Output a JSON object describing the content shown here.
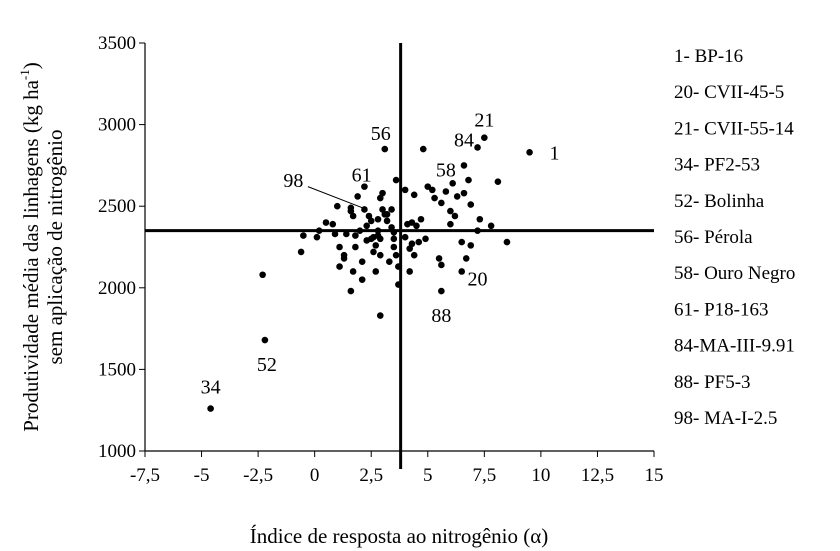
{
  "chart_data": {
    "type": "scatter",
    "title": "",
    "xlabel": "Índice de resposta ao nitrogênio (α)",
    "ylabel_line1": "Produtividade média das linhagens (kg ha",
    "ylabel_sup": "-1",
    "ylabel_close": ")",
    "ylabel_line2": "sem aplicação de nitrogênio",
    "xlim": [
      -7.5,
      15
    ],
    "ylim": [
      1000,
      3500
    ],
    "xticks": [
      -7.5,
      -5,
      -2.5,
      0,
      2.5,
      5,
      7.5,
      10,
      12.5,
      15
    ],
    "xtick_labels": [
      "-7,5",
      "-5",
      "-2,5",
      "0",
      "2,5",
      "5",
      "7,5",
      "10",
      "12,5",
      "15"
    ],
    "yticks": [
      1000,
      1500,
      2000,
      2500,
      3000,
      3500
    ],
    "ytick_labels": [
      "1000",
      "1500",
      "2000",
      "2500",
      "3000",
      "3500"
    ],
    "grid": false,
    "reference_lines": {
      "x": 3.8,
      "y": 2350
    },
    "points": [
      [
        9.5,
        2830
      ],
      [
        7.5,
        2920
      ],
      [
        7.2,
        2860
      ],
      [
        6.6,
        2750
      ],
      [
        6.8,
        2660
      ],
      [
        8.1,
        2650
      ],
      [
        6.3,
        2560
      ],
      [
        6.6,
        2580
      ],
      [
        6.9,
        2510
      ],
      [
        7.3,
        2420
      ],
      [
        7.8,
        2380
      ],
      [
        7.2,
        2350
      ],
      [
        8.5,
        2280
      ],
      [
        6.5,
        2280
      ],
      [
        6.9,
        2260
      ],
      [
        6.7,
        2180
      ],
      [
        6.5,
        2100
      ],
      [
        6.2,
        2440
      ],
      [
        6.0,
        2390
      ],
      [
        6.0,
        2470
      ],
      [
        5.8,
        2590
      ],
      [
        6.1,
        2640
      ],
      [
        5.6,
        2520
      ],
      [
        5.2,
        2600
      ],
      [
        5.3,
        2550
      ],
      [
        5.0,
        2620
      ],
      [
        4.8,
        2850
      ],
      [
        4.7,
        2420
      ],
      [
        4.9,
        2300
      ],
      [
        4.6,
        2280
      ],
      [
        4.4,
        2200
      ],
      [
        4.5,
        2380
      ],
      [
        4.3,
        2270
      ],
      [
        4.2,
        2240
      ],
      [
        4.3,
        2400
      ],
      [
        4.4,
        2570
      ],
      [
        4.0,
        2600
      ],
      [
        4.1,
        2390
      ],
      [
        4.0,
        2310
      ],
      [
        4.2,
        2100
      ],
      [
        5.5,
        2180
      ],
      [
        5.6,
        2140
      ],
      [
        5.6,
        1980
      ],
      [
        3.6,
        2660
      ],
      [
        3.4,
        2480
      ],
      [
        3.4,
        2370
      ],
      [
        3.5,
        2300
      ],
      [
        3.5,
        2250
      ],
      [
        3.6,
        2200
      ],
      [
        3.7,
        2130
      ],
      [
        3.7,
        2020
      ],
      [
        3.5,
        2340
      ],
      [
        3.3,
        2160
      ],
      [
        3.2,
        2410
      ],
      [
        3.0,
        2480
      ],
      [
        3.0,
        2580
      ],
      [
        3.1,
        2450
      ],
      [
        2.9,
        2550
      ],
      [
        2.8,
        2420
      ],
      [
        2.8,
        2350
      ],
      [
        2.9,
        2300
      ],
      [
        2.8,
        2320
      ],
      [
        2.7,
        2260
      ],
      [
        2.9,
        2200
      ],
      [
        2.6,
        2310
      ],
      [
        2.5,
        2300
      ],
      [
        2.6,
        2220
      ],
      [
        2.7,
        2100
      ],
      [
        2.5,
        2410
      ],
      [
        3.1,
        2850
      ],
      [
        2.9,
        1830
      ],
      [
        2.2,
        2620
      ],
      [
        2.2,
        2480
      ],
      [
        2.3,
        2380
      ],
      [
        2.3,
        2290
      ],
      [
        2.1,
        2160
      ],
      [
        2.1,
        2050
      ],
      [
        2.4,
        2440
      ],
      [
        2.0,
        2350
      ],
      [
        1.8,
        2320
      ],
      [
        1.8,
        2250
      ],
      [
        1.7,
        2100
      ],
      [
        1.6,
        1980
      ],
      [
        1.6,
        2490
      ],
      [
        1.6,
        2470
      ],
      [
        1.7,
        2440
      ],
      [
        1.4,
        2330
      ],
      [
        1.3,
        2200
      ],
      [
        1.3,
        2180
      ],
      [
        1.0,
        2500
      ],
      [
        1.1,
        2250
      ],
      [
        1.1,
        2130
      ],
      [
        0.9,
        2330
      ],
      [
        0.8,
        2390
      ],
      [
        0.5,
        2400
      ],
      [
        0.2,
        2350
      ],
      [
        0.1,
        2310
      ],
      [
        -0.5,
        2320
      ],
      [
        -0.6,
        2220
      ],
      [
        -2.3,
        2080
      ],
      [
        -2.2,
        1680
      ],
      [
        -4.6,
        1260
      ],
      [
        3.2,
        2450
      ],
      [
        1.9,
        2560
      ]
    ],
    "annotations": [
      {
        "text": "1",
        "x": 10.6,
        "y": 2830,
        "dx": 0,
        "dy": 0
      },
      {
        "text": "21",
        "x": 7.5,
        "y": 2920,
        "dx": 0,
        "dy": -18
      },
      {
        "text": "84",
        "x": 6.6,
        "y": 2860,
        "dx": 0,
        "dy": -8
      },
      {
        "text": "56",
        "x": 3.1,
        "y": 2850,
        "dx": -4,
        "dy": -16
      },
      {
        "text": "58",
        "x": 5.8,
        "y": 2590,
        "dx": 0,
        "dy": -22
      },
      {
        "text": "61",
        "x": 1.9,
        "y": 2560,
        "dx": 4,
        "dy": -22
      },
      {
        "text": "98",
        "x": -0.5,
        "y": 2660,
        "dx": -10,
        "dy": 0
      },
      {
        "text": "20",
        "x": 7.2,
        "y": 2180,
        "dx": 0,
        "dy": 20
      },
      {
        "text": "88",
        "x": 5.6,
        "y": 1980,
        "dx": 0,
        "dy": 24
      },
      {
        "text": "52",
        "x": -2.2,
        "y": 1680,
        "dx": 2,
        "dy": 24
      },
      {
        "text": "34",
        "x": -4.6,
        "y": 1260,
        "dx": 0,
        "dy": -22
      }
    ],
    "leader_line": {
      "from": [
        -0.3,
        2620
      ],
      "to": [
        2.3,
        2480
      ]
    },
    "legend": [
      "1- BP-16",
      "20- CVII-45-5",
      "21- CVII-55-14",
      "34- PF2-53",
      "52- Bolinha",
      "56- Pérola",
      "58- Ouro Negro",
      "61- P18-163",
      "84-MA-III-9.91",
      "88- PF5-3",
      "98- MA-I-2.5"
    ],
    "legend_position": "right",
    "colors": {
      "marks": "#000000",
      "background": "#ffffff"
    }
  }
}
